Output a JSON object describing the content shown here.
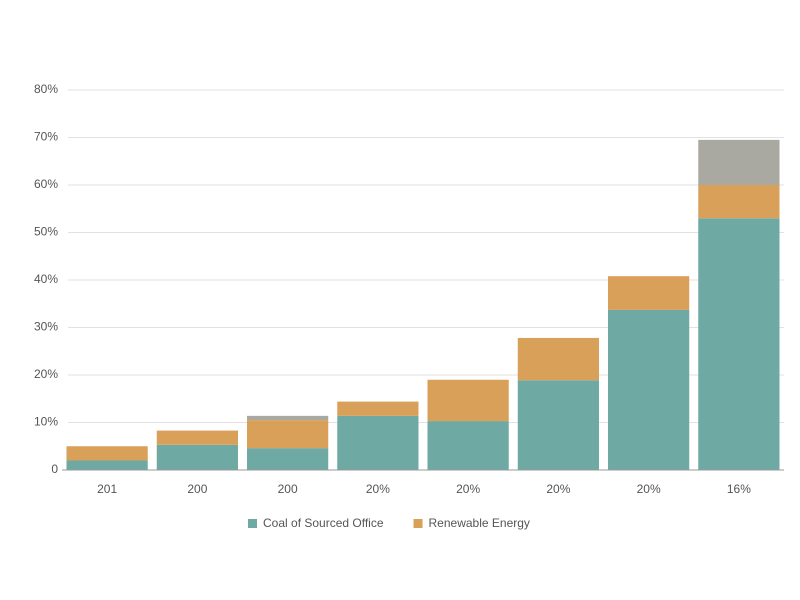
{
  "chart_data": {
    "type": "stacked-bar",
    "categories": [
      "201",
      "200",
      "200",
      "20%",
      "20%",
      "20%",
      "20%",
      "16%"
    ],
    "series": [
      {
        "name": "Coal of Sourced Office",
        "color": "#6fa9a3",
        "values": [
          2,
          5.3,
          4.6,
          11.4,
          10.3,
          18.9,
          33.7,
          53
        ]
      },
      {
        "name": "Renewable Energy",
        "color": "#d9a05a",
        "values": [
          3,
          3,
          5.9,
          3,
          8.7,
          8.9,
          7.1,
          7
        ]
      },
      {
        "name": null,
        "color": "#a9a9a1",
        "values": [
          0,
          0,
          0.9,
          0,
          0,
          0,
          0,
          9.5
        ]
      }
    ],
    "ylim": [
      0,
      80
    ],
    "yticks": [
      0,
      {
        "value": 10,
        "label": "10%"
      },
      {
        "value": 20,
        "label": "20%"
      },
      {
        "value": 30,
        "label": "30%"
      },
      {
        "value": 40,
        "label": "40%"
      },
      {
        "value": 50,
        "label": "50%"
      },
      {
        "value": 60,
        "label": "60%"
      },
      {
        "value": 70,
        "label": "70%"
      },
      {
        "value": 80,
        "label": "80%"
      }
    ],
    "grid": true
  }
}
